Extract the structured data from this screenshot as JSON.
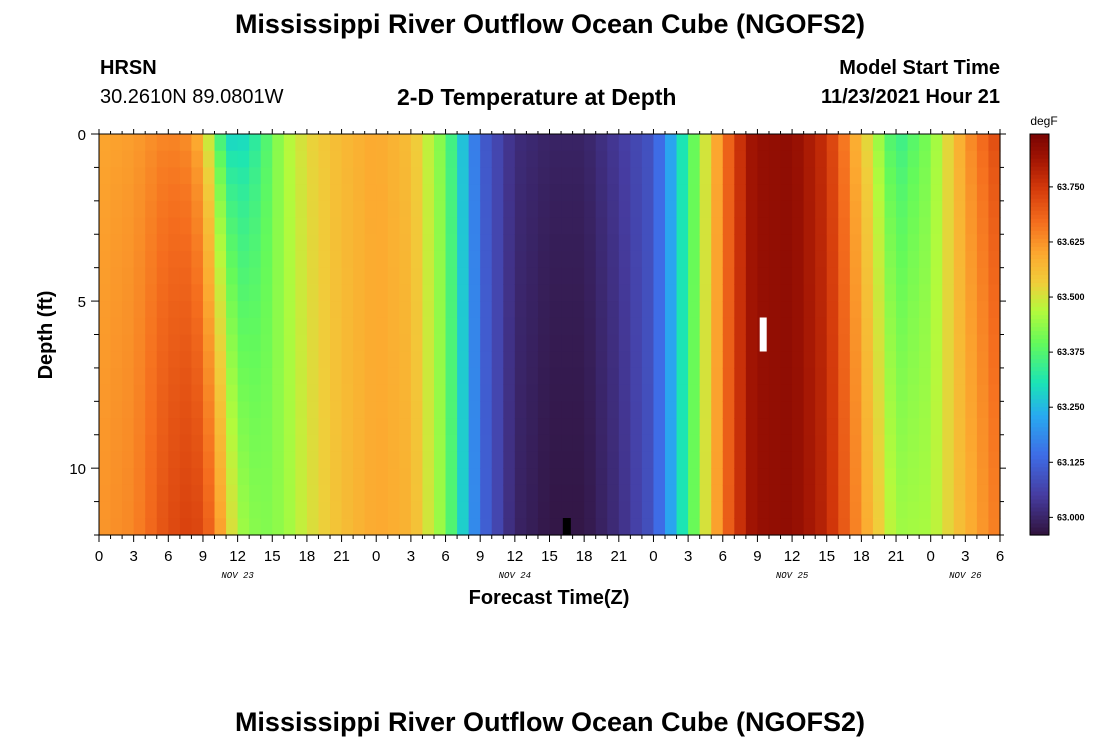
{
  "header": {
    "title": "Mississippi River Outflow Ocean Cube (NGOFS2)",
    "station": "HRSN",
    "coords": "30.2610N  89.0801W",
    "subtitle": "2-D Temperature at Depth",
    "start_label": "Model Start Time",
    "start_value": "11/23/2021 Hour 21"
  },
  "footer": {
    "title": "Mississippi River Outflow Ocean Cube (NGOFS2)"
  },
  "chart_data": {
    "type": "heatmap",
    "title": "2-D Temperature at Depth",
    "xlabel": "Forecast Time(Z)",
    "ylabel": "Depth (ft)",
    "x_hours_range": [
      0,
      78
    ],
    "x_ticks": [
      "0",
      "3",
      "6",
      "9",
      "12",
      "15",
      "18",
      "21",
      "0",
      "3",
      "6",
      "9",
      "12",
      "15",
      "18",
      "21",
      "0",
      "3",
      "6",
      "9",
      "12",
      "15",
      "18",
      "21",
      "0",
      "3",
      "6"
    ],
    "x_date_labels": [
      {
        "label": "NOV 23",
        "hour": 12
      },
      {
        "label": "NOV 24",
        "hour": 36
      },
      {
        "label": "NOV 25",
        "hour": 60
      },
      {
        "label": "NOV 26",
        "hour": 75
      }
    ],
    "y_ticks": [
      0,
      5,
      10
    ],
    "ylim": [
      0,
      12
    ],
    "colorbar": {
      "unit": "degF",
      "range": [
        62.96,
        63.87
      ],
      "labels": [
        "63.000",
        "63.125",
        "63.250",
        "63.375",
        "63.500",
        "63.625",
        "63.750"
      ],
      "label_values": [
        63.0,
        63.125,
        63.25,
        63.375,
        63.5,
        63.625,
        63.75
      ]
    },
    "profile_time_hours": [
      0,
      3,
      6,
      8,
      9,
      10,
      11,
      12,
      14,
      16,
      18,
      21,
      24,
      27,
      30,
      33,
      36,
      39,
      42,
      45,
      48,
      51,
      54,
      56,
      57,
      60,
      63,
      66,
      69,
      72,
      75,
      78
    ],
    "surface_degF": [
      63.6,
      63.61,
      63.64,
      63.62,
      63.55,
      63.4,
      63.28,
      63.26,
      63.34,
      63.46,
      63.52,
      63.57,
      63.6,
      63.56,
      63.4,
      63.12,
      63.02,
      63.0,
      63.0,
      63.05,
      63.1,
      63.35,
      63.65,
      63.8,
      63.83,
      63.84,
      63.76,
      63.55,
      63.33,
      63.42,
      63.62,
      63.74
    ],
    "bottom_degF": [
      63.62,
      63.64,
      63.72,
      63.74,
      63.72,
      63.66,
      63.56,
      63.46,
      63.42,
      63.44,
      63.5,
      63.56,
      63.6,
      63.58,
      63.42,
      63.14,
      63.0,
      62.97,
      62.97,
      63.02,
      63.1,
      63.35,
      63.66,
      63.8,
      63.83,
      63.84,
      63.78,
      63.62,
      63.45,
      63.46,
      63.58,
      63.66
    ],
    "markers": [
      {
        "hour": 57.5,
        "depth_ft": 6,
        "color": "#ffffff"
      },
      {
        "hour": 40.5,
        "depth_ft": 11.8,
        "color": "#000000"
      }
    ]
  }
}
